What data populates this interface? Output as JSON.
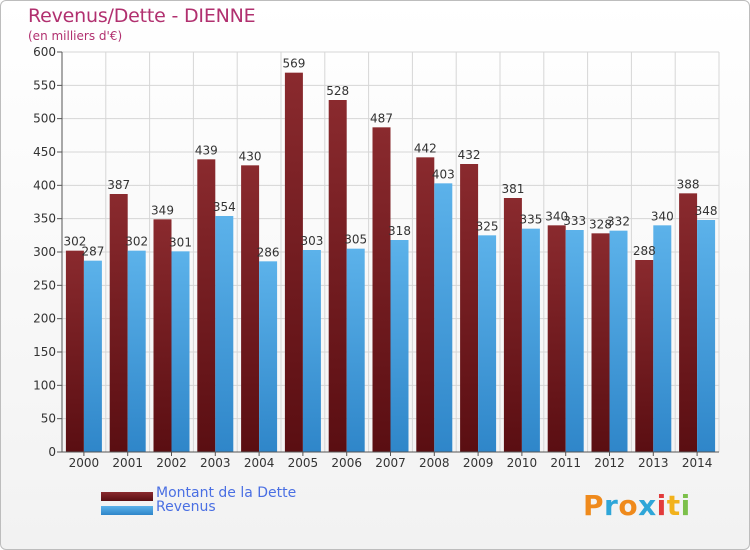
{
  "title": "Revenus/Dette - DIENNE",
  "subtitle": "(en milliers d'€)",
  "colors": {
    "dette_top": "#8a2a2e",
    "dette_bottom": "#5a0e12",
    "revenus_top": "#5cb2ea",
    "revenus_bottom": "#2f86c9",
    "title": "#b1306f",
    "legend_text": "#4a6fe3"
  },
  "legend": {
    "dette": "Montant de la Dette",
    "revenus": "Revenus"
  },
  "logo": {
    "letters": [
      "P",
      "r",
      "o",
      "x",
      "i",
      "t",
      "i"
    ],
    "colors": [
      "#ef8a1c",
      "#2fa6d8",
      "#ef8a1c",
      "#2fa6d8",
      "#e23b3b",
      "#f2b21c",
      "#7cc04b"
    ]
  },
  "chart_data": {
    "type": "bar",
    "title": "Revenus/Dette - DIENNE",
    "subtitle": "(en milliers d'€)",
    "xlabel": "",
    "ylabel": "",
    "ylim": [
      0,
      600
    ],
    "yticks": [
      0,
      50,
      100,
      150,
      200,
      250,
      300,
      350,
      400,
      450,
      500,
      550,
      600
    ],
    "grid": true,
    "legend_position": "bottom-left",
    "categories": [
      "2000",
      "2001",
      "2002",
      "2003",
      "2004",
      "2005",
      "2006",
      "2007",
      "2008",
      "2009",
      "2010",
      "2011",
      "2012",
      "2013",
      "2014"
    ],
    "series": [
      {
        "name": "Montant de la Dette",
        "values": [
          302,
          387,
          349,
          439,
          430,
          569,
          528,
          487,
          442,
          432,
          381,
          340,
          328,
          288,
          388
        ]
      },
      {
        "name": "Revenus",
        "values": [
          287,
          302,
          301,
          354,
          286,
          303,
          305,
          318,
          403,
          325,
          335,
          333,
          332,
          340,
          348
        ]
      }
    ]
  }
}
